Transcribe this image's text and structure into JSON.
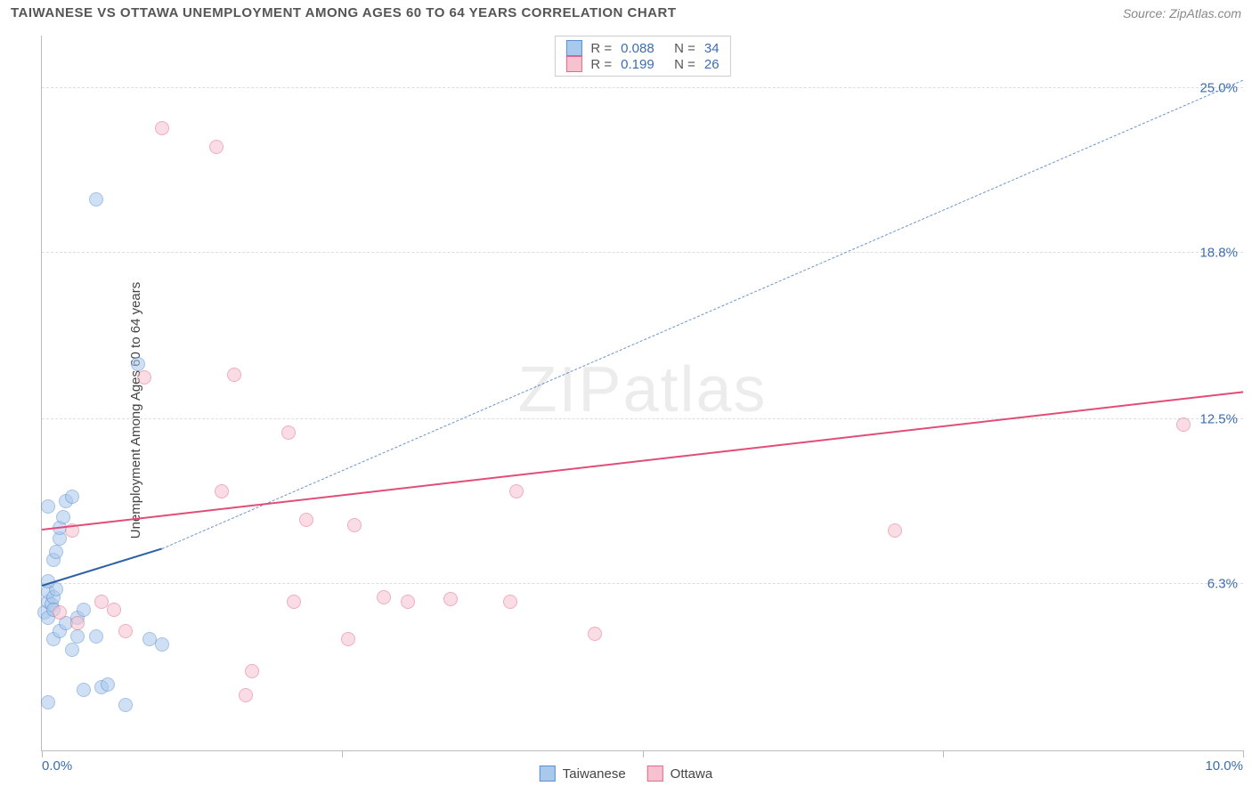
{
  "title": "TAIWANESE VS OTTAWA UNEMPLOYMENT AMONG AGES 60 TO 64 YEARS CORRELATION CHART",
  "source_label": "Source: ZipAtlas.com",
  "ylabel": "Unemployment Among Ages 60 to 64 years",
  "watermark": "ZIPatlas",
  "chart": {
    "type": "scatter",
    "xlim": [
      0,
      10
    ],
    "ylim": [
      0,
      27
    ],
    "x_min_label": "0.0%",
    "x_max_label": "10.0%",
    "y_ticks": [
      6.3,
      12.5,
      18.8,
      25.0
    ],
    "y_tick_labels": [
      "6.3%",
      "12.5%",
      "18.8%",
      "25.0%"
    ],
    "x_tick_positions": [
      0,
      2.5,
      5.0,
      7.5,
      10.0
    ],
    "grid_color": "#dddddd",
    "axis_color": "#bbbbbb",
    "background_color": "#ffffff",
    "point_radius": 8,
    "point_opacity": 0.55,
    "series": [
      {
        "name": "Taiwanese",
        "color_fill": "#a8c8ec",
        "color_stroke": "#5b8fd0",
        "r_value": "0.088",
        "n_value": "34",
        "points": [
          [
            0.02,
            5.2
          ],
          [
            0.05,
            5.6
          ],
          [
            0.05,
            6.0
          ],
          [
            0.08,
            5.5
          ],
          [
            0.1,
            5.8
          ],
          [
            0.12,
            6.1
          ],
          [
            0.1,
            7.2
          ],
          [
            0.12,
            7.5
          ],
          [
            0.15,
            8.0
          ],
          [
            0.15,
            8.4
          ],
          [
            0.18,
            8.8
          ],
          [
            0.05,
            9.2
          ],
          [
            0.2,
            9.4
          ],
          [
            0.25,
            9.6
          ],
          [
            0.1,
            4.2
          ],
          [
            0.15,
            4.5
          ],
          [
            0.2,
            4.8
          ],
          [
            0.3,
            4.3
          ],
          [
            0.45,
            4.3
          ],
          [
            0.5,
            2.4
          ],
          [
            0.55,
            2.5
          ],
          [
            0.35,
            2.3
          ],
          [
            0.05,
            1.8
          ],
          [
            0.7,
            1.7
          ],
          [
            0.05,
            5.0
          ],
          [
            0.1,
            5.3
          ],
          [
            0.45,
            20.8
          ],
          [
            0.25,
            3.8
          ],
          [
            0.3,
            5.0
          ],
          [
            0.35,
            5.3
          ],
          [
            0.8,
            14.6
          ],
          [
            0.9,
            4.2
          ],
          [
            0.05,
            6.4
          ],
          [
            1.0,
            4.0
          ]
        ],
        "trend": {
          "x1": 0.0,
          "y1": 6.2,
          "x2": 1.0,
          "y2": 7.6,
          "color": "#2d5fa7",
          "width": 2.5,
          "dash": false
        },
        "trend_ext": {
          "x1": 1.0,
          "y1": 7.6,
          "x2": 10.0,
          "y2": 25.3,
          "color": "#6a93cf",
          "width": 1.2,
          "dash": true
        }
      },
      {
        "name": "Ottawa",
        "color_fill": "#f6c2cf",
        "color_stroke": "#e26b8a",
        "r_value": "0.199",
        "n_value": "26",
        "points": [
          [
            0.15,
            5.2
          ],
          [
            0.3,
            4.8
          ],
          [
            0.5,
            5.6
          ],
          [
            0.6,
            5.3
          ],
          [
            0.7,
            4.5
          ],
          [
            1.0,
            23.5
          ],
          [
            1.45,
            22.8
          ],
          [
            0.85,
            14.1
          ],
          [
            1.6,
            14.2
          ],
          [
            1.5,
            9.8
          ],
          [
            1.7,
            2.1
          ],
          [
            1.75,
            3.0
          ],
          [
            2.05,
            12.0
          ],
          [
            2.1,
            5.6
          ],
          [
            2.2,
            8.7
          ],
          [
            2.55,
            4.2
          ],
          [
            2.6,
            8.5
          ],
          [
            2.85,
            5.8
          ],
          [
            3.05,
            5.6
          ],
          [
            3.4,
            5.7
          ],
          [
            3.9,
            5.6
          ],
          [
            3.95,
            9.8
          ],
          [
            4.6,
            4.4
          ],
          [
            7.1,
            8.3
          ],
          [
            9.5,
            12.3
          ],
          [
            0.25,
            8.3
          ]
        ],
        "trend": {
          "x1": 0.0,
          "y1": 8.3,
          "x2": 10.0,
          "y2": 13.5,
          "color": "#e14d76",
          "width": 2.5,
          "dash": false
        }
      }
    ],
    "legend_top": {
      "r_label": "R =",
      "n_label": "N =",
      "r_color": "#3b6db0",
      "n_color": "#3b6db0",
      "text_color": "#555555"
    },
    "legend_bottom": {
      "items": [
        "Taiwanese",
        "Ottawa"
      ]
    }
  }
}
